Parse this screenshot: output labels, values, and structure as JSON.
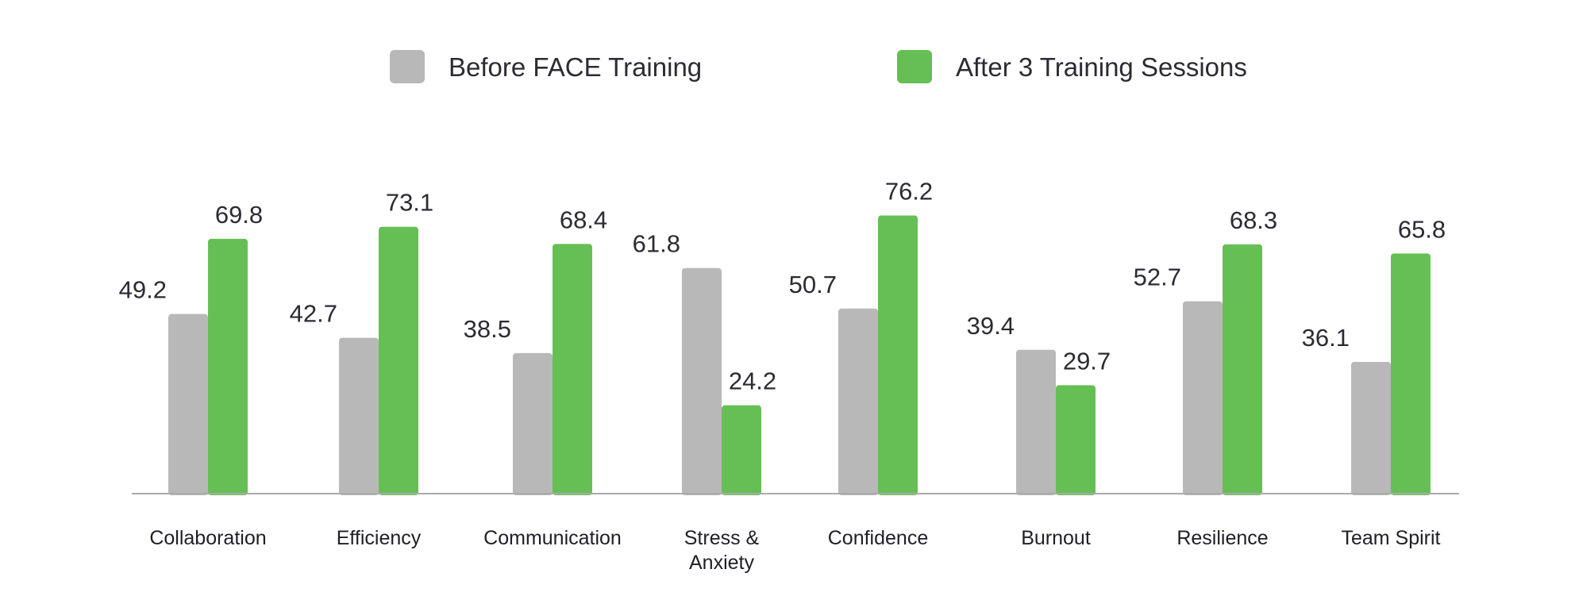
{
  "chart_data": {
    "type": "bar",
    "title": "",
    "xlabel": "",
    "ylabel": "",
    "ylim": [
      0,
      100
    ],
    "grid": false,
    "legend_position": "top-center",
    "categories": [
      "Collaboration",
      "Efficiency",
      "Communication",
      "Stress &\nAnxiety",
      "Confidence",
      "Burnout",
      "Resilience",
      "Team Spirit"
    ],
    "series": [
      {
        "name": "Before FACE Training",
        "color": "#b8b8b8",
        "values": [
          49.2,
          42.7,
          38.5,
          61.8,
          50.7,
          39.4,
          52.7,
          36.1
        ]
      },
      {
        "name": "After 3 Training Sessions",
        "color": "#66bf55",
        "values": [
          69.8,
          73.1,
          68.4,
          24.2,
          76.2,
          29.7,
          68.3,
          65.8
        ]
      }
    ],
    "axis_color": "#aaaaaa"
  }
}
